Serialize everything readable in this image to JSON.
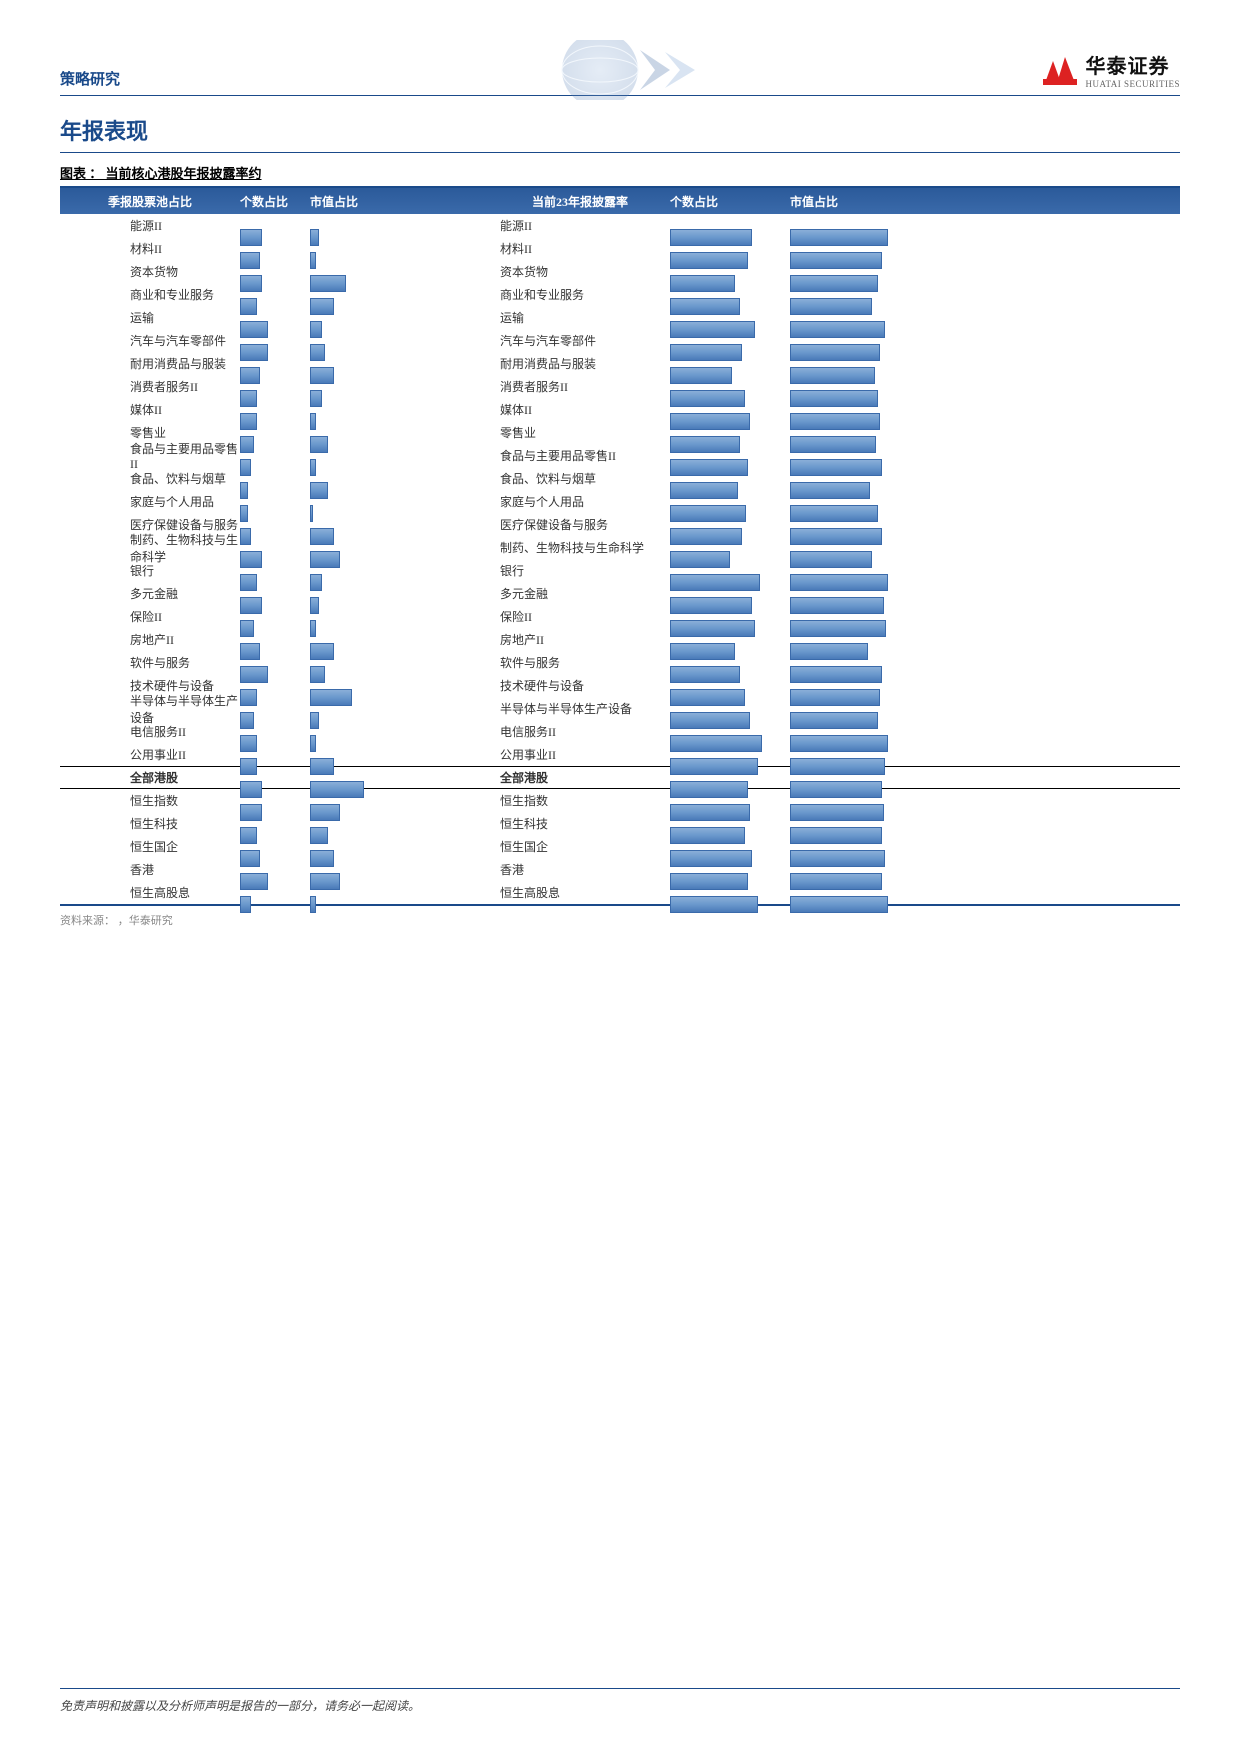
{
  "header": {
    "left_label": "策略研究",
    "logo_cn": "华泰证券",
    "logo_en": "HUATAI SECURITIES"
  },
  "section_title": "年报表现",
  "chart_title": "图表 ： 当前核心港股年报披露率约",
  "table_header": {
    "left_title": "季报股票池占比",
    "left_col1": "个数占比",
    "left_col2": "市值占比",
    "right_title": "当前23年报披露率",
    "right_col1": "个数占比",
    "right_col2": "市值占比"
  },
  "colors": {
    "brand_blue": "#1a4a8a",
    "header_grad_top": "#2b5a9a",
    "header_grad_bottom": "#3a6aaa",
    "bar_grad_top": "#8aaed8",
    "bar_grad_mid": "#6a98cc",
    "bar_grad_bottom": "#4a7ab8",
    "bar_border": "#3a6aaa",
    "logo_red": "#d22",
    "text_dark": "#333",
    "source_gray": "#888"
  },
  "bar_ranges": {
    "l1_max": 25,
    "l2_max": 50,
    "r1_max": 120,
    "r2_max": 120
  },
  "rows": [
    {
      "label": "能源II",
      "l1": 8,
      "l2": 3,
      "r1": 82,
      "r2": 98,
      "bold": false
    },
    {
      "label": "材料II",
      "l1": 7,
      "l2": 2,
      "r1": 78,
      "r2": 92,
      "bold": false
    },
    {
      "label": "资本货物",
      "l1": 8,
      "l2": 12,
      "r1": 65,
      "r2": 88,
      "bold": false
    },
    {
      "label": "商业和专业服务",
      "l1": 6,
      "l2": 8,
      "r1": 70,
      "r2": 82,
      "bold": false
    },
    {
      "label": "运输",
      "l1": 10,
      "l2": 4,
      "r1": 85,
      "r2": 95,
      "bold": false
    },
    {
      "label": "汽车与汽车零部件",
      "l1": 10,
      "l2": 5,
      "r1": 72,
      "r2": 90,
      "bold": false
    },
    {
      "label": "耐用消费品与服装",
      "l1": 7,
      "l2": 8,
      "r1": 62,
      "r2": 85,
      "bold": false
    },
    {
      "label": "消费者服务II",
      "l1": 6,
      "l2": 4,
      "r1": 75,
      "r2": 88,
      "bold": false
    },
    {
      "label": "媒体II",
      "l1": 6,
      "l2": 2,
      "r1": 80,
      "r2": 90,
      "bold": false
    },
    {
      "label": "零售业",
      "l1": 5,
      "l2": 6,
      "r1": 70,
      "r2": 86,
      "bold": false
    },
    {
      "label": "食品与主要用品零售II",
      "l1": 4,
      "l2": 2,
      "r1": 78,
      "r2": 92,
      "bold": false
    },
    {
      "label": "食品、饮料与烟草",
      "l1": 3,
      "l2": 6,
      "r1": 68,
      "r2": 80,
      "bold": false
    },
    {
      "label": "家庭与个人用品",
      "l1": 3,
      "l2": 1,
      "r1": 76,
      "r2": 88,
      "bold": false
    },
    {
      "label": "医疗保健设备与服务",
      "l1": 4,
      "l2": 8,
      "r1": 72,
      "r2": 92,
      "bold": false
    },
    {
      "label": "制药、生物科技与生命科学",
      "l1": 8,
      "l2": 10,
      "r1": 60,
      "r2": 82,
      "bold": false
    },
    {
      "label": "银行",
      "l1": 6,
      "l2": 4,
      "r1": 90,
      "r2": 98,
      "bold": false
    },
    {
      "label": "多元金融",
      "l1": 8,
      "l2": 3,
      "r1": 82,
      "r2": 94,
      "bold": false
    },
    {
      "label": "保险II",
      "l1": 5,
      "l2": 2,
      "r1": 85,
      "r2": 96,
      "bold": false
    },
    {
      "label": "房地产II",
      "l1": 7,
      "l2": 8,
      "r1": 65,
      "r2": 78,
      "bold": false
    },
    {
      "label": "软件与服务",
      "l1": 10,
      "l2": 5,
      "r1": 70,
      "r2": 92,
      "bold": false
    },
    {
      "label": "技术硬件与设备",
      "l1": 6,
      "l2": 14,
      "r1": 75,
      "r2": 90,
      "bold": false
    },
    {
      "label": "半导体与半导体生产设备",
      "l1": 5,
      "l2": 3,
      "r1": 80,
      "r2": 88,
      "bold": false
    },
    {
      "label": "电信服务II",
      "l1": 6,
      "l2": 2,
      "r1": 92,
      "r2": 98,
      "bold": false
    },
    {
      "label": "公用事业II",
      "l1": 6,
      "l2": 8,
      "r1": 88,
      "r2": 95,
      "bold": false
    },
    {
      "label": "全部港股",
      "l1": 8,
      "l2": 18,
      "r1": 78,
      "r2": 92,
      "bold": true
    },
    {
      "label": "恒生指数",
      "l1": 8,
      "l2": 10,
      "r1": 80,
      "r2": 94,
      "bold": false
    },
    {
      "label": "恒生科技",
      "l1": 6,
      "l2": 6,
      "r1": 75,
      "r2": 92,
      "bold": false
    },
    {
      "label": "恒生国企",
      "l1": 7,
      "l2": 8,
      "r1": 82,
      "r2": 95,
      "bold": false
    },
    {
      "label": "香港",
      "l1": 10,
      "l2": 10,
      "r1": 78,
      "r2": 92,
      "bold": false
    },
    {
      "label": "恒生高股息",
      "l1": 4,
      "l2": 2,
      "r1": 88,
      "r2": 98,
      "bold": false
    }
  ],
  "source": "资料来源：      ，华泰研究",
  "footer": "免责声明和披露以及分析师声明是报告的一部分，请务必一起阅读。"
}
